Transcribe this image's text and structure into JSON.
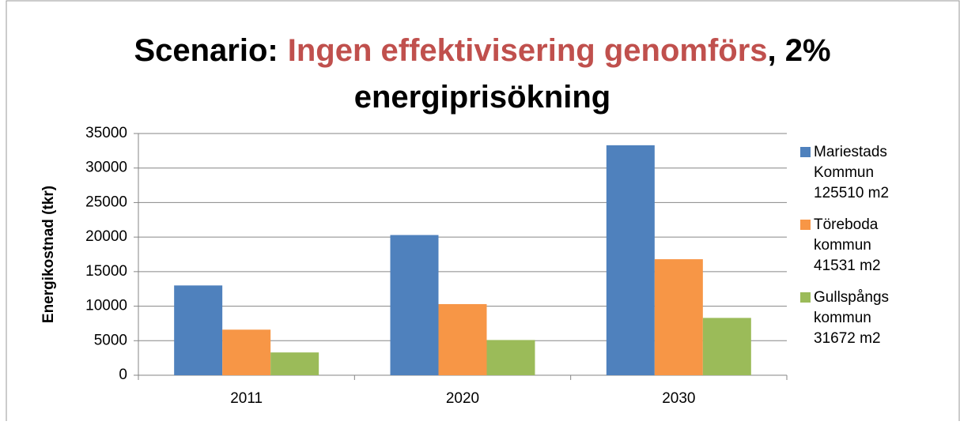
{
  "chart_data": {
    "type": "bar",
    "title": [
      "Scenario:",
      "Ingen effektivisering genomförs",
      ", 2%",
      "energiprisökning"
    ],
    "title_highlight": 1,
    "title_highlight_color": "#c0504d",
    "ylabel": "Energikostnad (tkr)",
    "categories": [
      "2011",
      "2020",
      "2030"
    ],
    "series": [
      {
        "name": "Mariestads Kommun 125510 m2",
        "color": "#4f81bd",
        "values": [
          13000,
          20300,
          33300
        ]
      },
      {
        "name": "Töreboda kommun 41531 m2",
        "color": "#f79646",
        "values": [
          6600,
          10300,
          16800
        ]
      },
      {
        "name": "Gullspångs kommun 31672 m2",
        "color": "#9bbb59",
        "values": [
          3300,
          5100,
          8300
        ]
      }
    ],
    "ylim": [
      0,
      35000
    ],
    "yticks": [
      0,
      5000,
      10000,
      15000,
      20000,
      25000,
      30000,
      35000
    ],
    "grid": true,
    "legend": "right"
  }
}
